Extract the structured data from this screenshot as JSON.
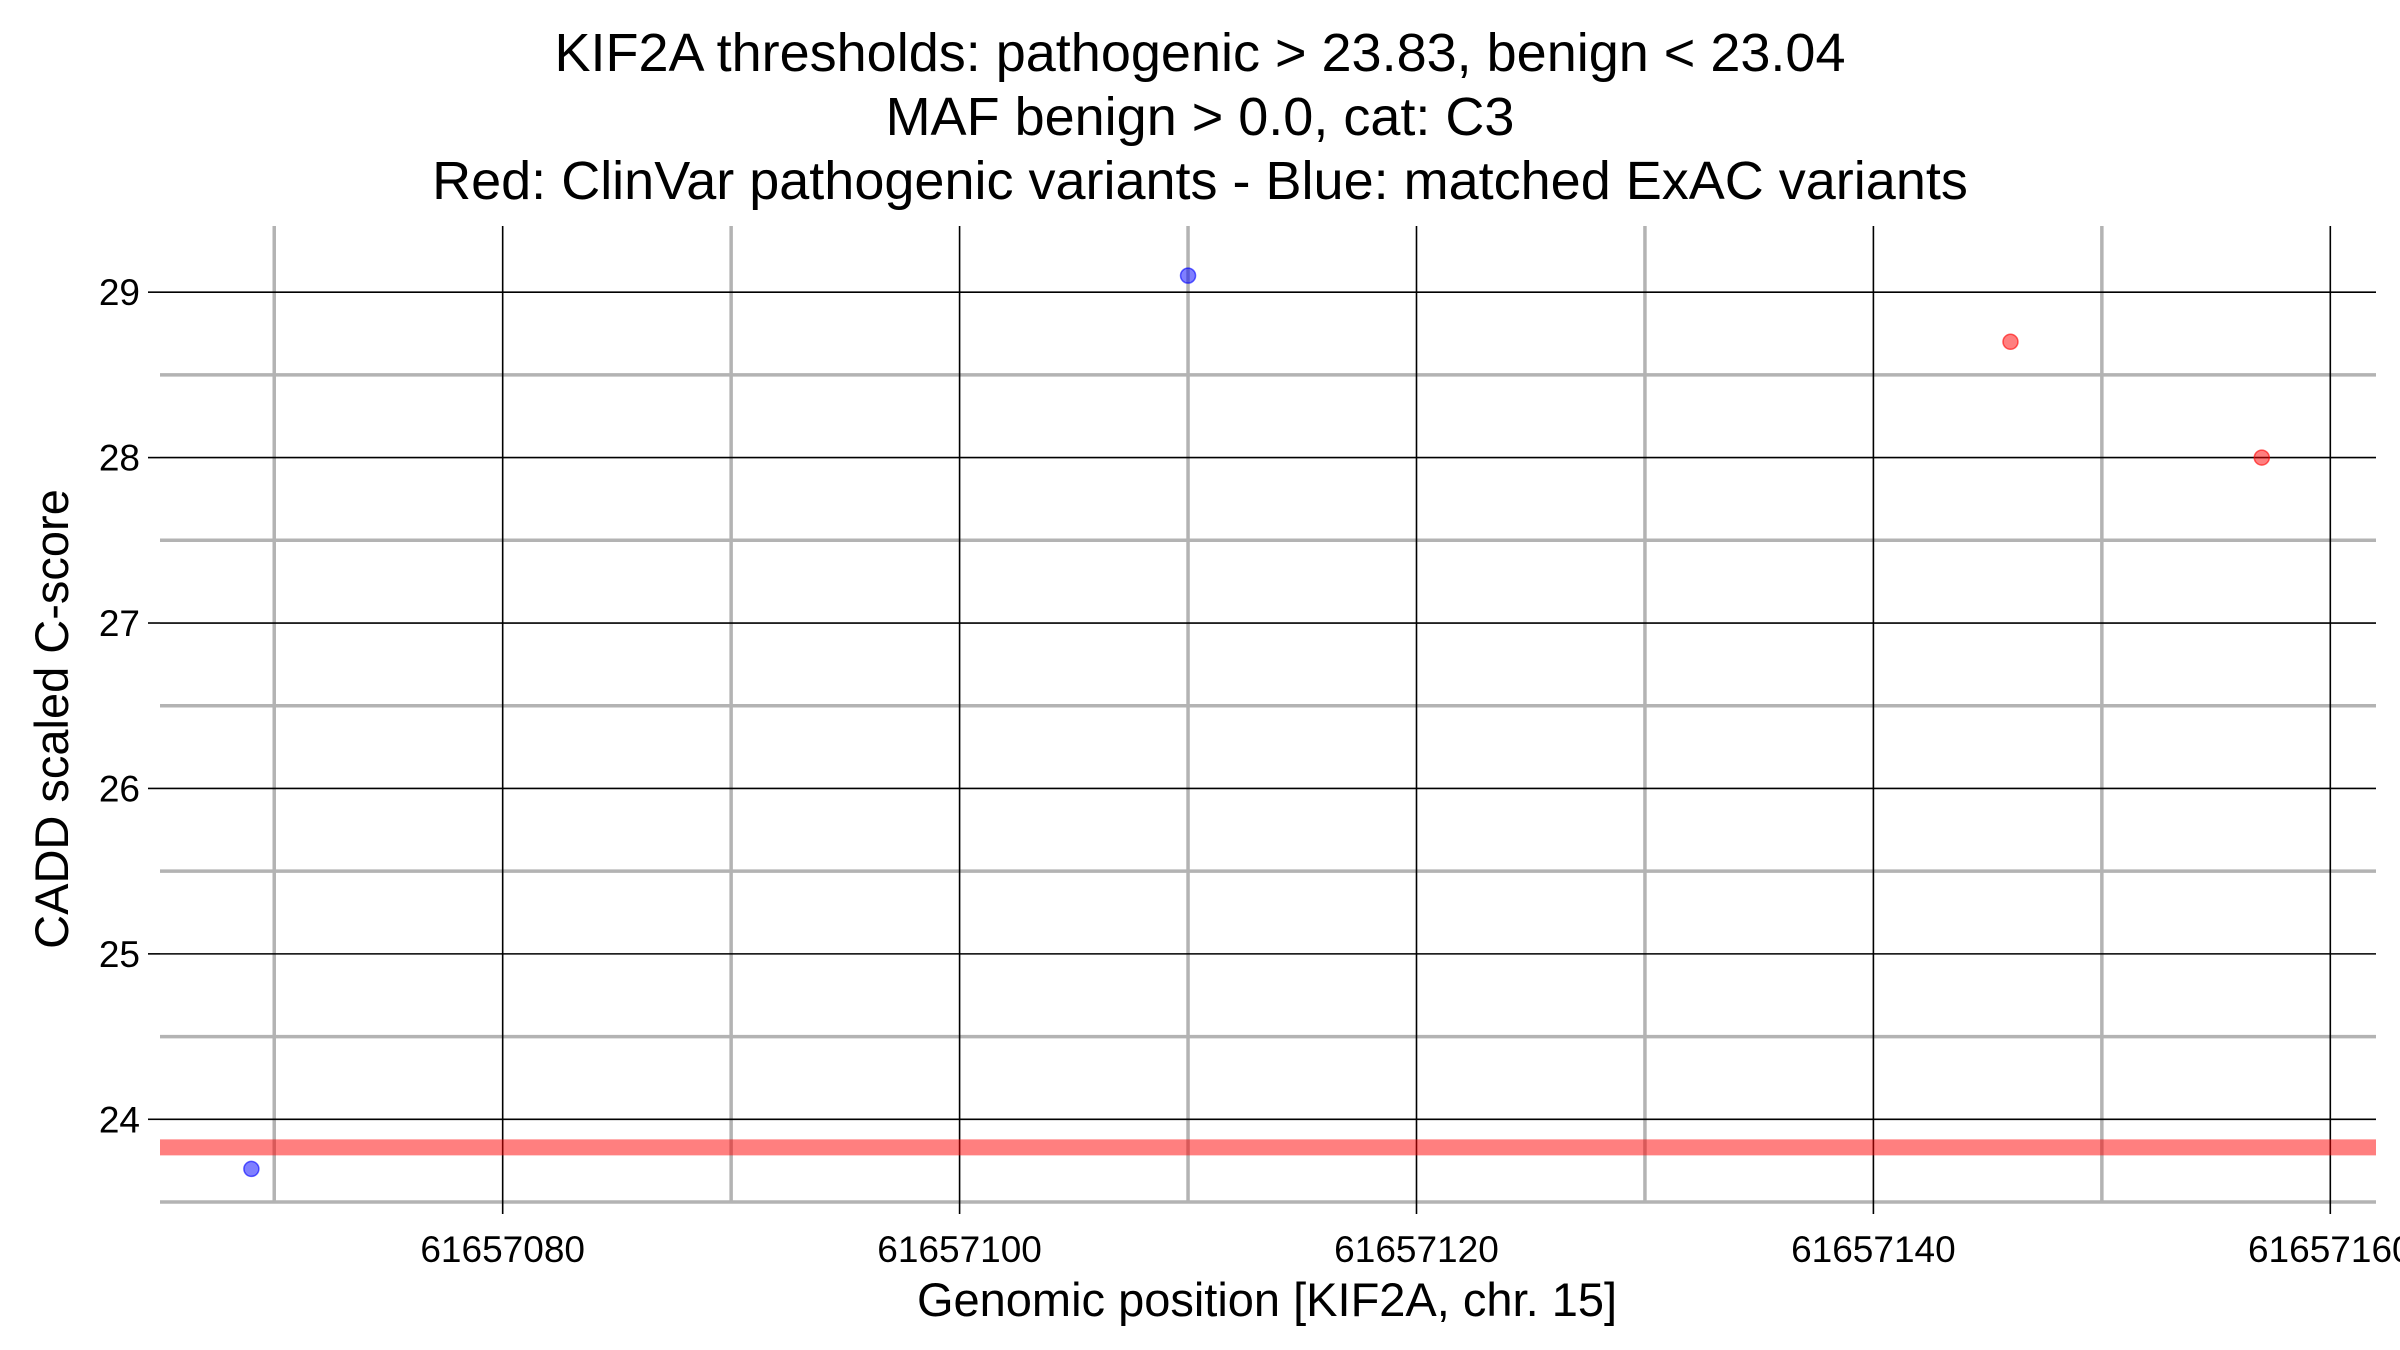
{
  "chart_data": {
    "type": "scatter",
    "title_lines": [
      "KIF2A thresholds: pathogenic > 23.83, benign < 23.04",
      "MAF benign > 0.0, cat: C3",
      "Red: ClinVar pathogenic variants - Blue: matched ExAC variants"
    ],
    "xlabel": "Genomic position [KIF2A, chr. 15]",
    "ylabel": "CADD scaled C-score",
    "xlim": [
      61657065,
      61657162
    ],
    "ylim": [
      23.5,
      29.4
    ],
    "x_major_ticks": [
      61657080,
      61657100,
      61657120,
      61657140,
      61657160
    ],
    "x_tick_labels": [
      "61657080",
      "61657100",
      "61657120",
      "61657140",
      "61657160"
    ],
    "x_minor_ticks": [
      61657070,
      61657090,
      61657110,
      61657130,
      61657150
    ],
    "y_major_ticks": [
      24,
      25,
      26,
      27,
      28,
      29
    ],
    "y_tick_labels": [
      "24",
      "25",
      "26",
      "27",
      "28",
      "29"
    ],
    "y_minor_ticks": [
      23.5,
      24.5,
      25.5,
      26.5,
      27.5,
      28.5
    ],
    "grid": true,
    "series": [
      {
        "color": "#ff0000",
        "points": [
          {
            "x": 61657146,
            "y": 28.7
          },
          {
            "x": 61657157,
            "y": 28.0
          }
        ]
      },
      {
        "color": "#0000ff",
        "points": [
          {
            "x": 61657110,
            "y": 29.1
          },
          {
            "x": 61657069,
            "y": 23.7
          }
        ]
      }
    ],
    "threshold_lines": [
      {
        "y": 23.83,
        "color": "#ff0000"
      },
      {
        "y": 23.04,
        "color": "#0000ff"
      }
    ]
  }
}
